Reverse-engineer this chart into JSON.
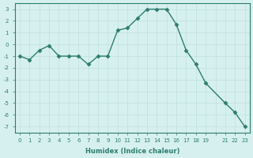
{
  "x": [
    0,
    1,
    2,
    3,
    4,
    5,
    6,
    7,
    8,
    9,
    10,
    11,
    12,
    13,
    14,
    15,
    16,
    17,
    18,
    19,
    21,
    22,
    23
  ],
  "y": [
    -1.0,
    -1.3,
    -0.5,
    -0.1,
    -1.0,
    -1.0,
    -1.0,
    -1.7,
    -1.0,
    -1.0,
    1.2,
    1.4,
    2.2,
    3.0,
    3.0,
    3.0,
    1.7,
    -0.5,
    -1.7,
    -3.3,
    -5.0,
    -5.8,
    -7.0
  ],
  "xlabel": "Humidex (Indice chaleur)",
  "xlim": [
    -0.5,
    23.5
  ],
  "ylim": [
    -7.5,
    3.5
  ],
  "yticks": [
    -7,
    -6,
    -5,
    -4,
    -3,
    -2,
    -1,
    0,
    1,
    2,
    3
  ],
  "xticks": [
    0,
    1,
    2,
    3,
    4,
    5,
    6,
    7,
    8,
    9,
    10,
    11,
    12,
    13,
    14,
    15,
    16,
    17,
    18,
    19,
    20,
    21,
    22,
    23
  ],
  "xtick_labels": [
    "0",
    "1",
    "2",
    "3",
    "4",
    "5",
    "6",
    "7",
    "8",
    "9",
    "10",
    "11",
    "12",
    "13",
    "14",
    "15",
    "16",
    "17",
    "18",
    "19",
    "",
    "21",
    "22",
    "23"
  ],
  "line_color": "#2e7d6e",
  "marker": "D",
  "marker_size": 2.5,
  "background_color": "#d6f0f0",
  "grid_color": "#c0dede",
  "tick_color": "#2e7d6e",
  "label_color": "#2e7d6e"
}
